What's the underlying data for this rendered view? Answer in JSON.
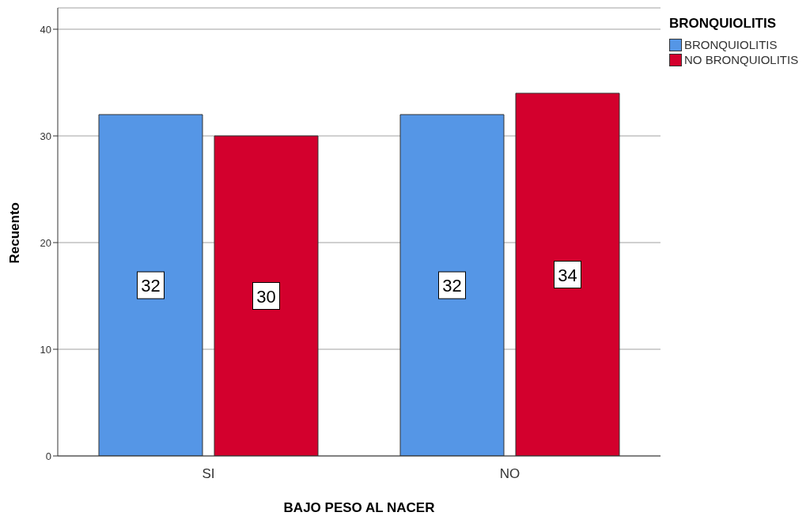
{
  "chart_data": {
    "type": "bar",
    "xlabel": "BAJO PESO AL NACER",
    "ylabel": "Recuento",
    "legend_title": "BRONQUIOLITIS",
    "categories": [
      "SI",
      "NO"
    ],
    "series": [
      {
        "name": "BRONQUIOLITIS",
        "color": "#5596e6",
        "values": [
          32,
          32
        ]
      },
      {
        "name": "NO BRONQUIOLITIS",
        "color": "#d3002d",
        "values": [
          30,
          34
        ]
      }
    ],
    "ylim": [
      0,
      42
    ],
    "yticks": [
      0,
      10,
      20,
      30,
      40
    ],
    "grid": "y",
    "legend": "top right",
    "data_labels": true
  }
}
